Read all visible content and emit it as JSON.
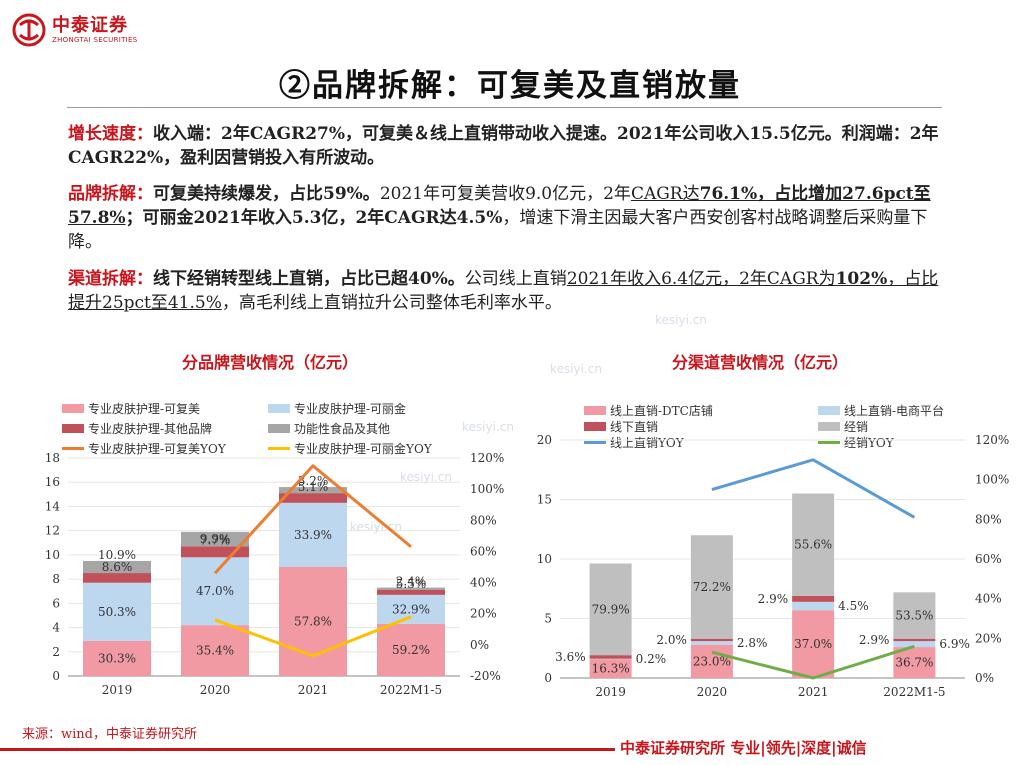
{
  "logo": {
    "cn": "中泰证券",
    "en": "ZHONGTAI SECURITIES"
  },
  "title": "②品牌拆解：可复美及直销放量",
  "paragraphs": {
    "p1_kw": "增长速度：",
    "p1_bold": "收入端：2年CAGR27%，可复美＆线上直销带动收入提速。2021年公司收入15.5亿元。利润端：2年CAGR22%，盈利因营销投入有所波动。",
    "p2_kw": "品牌拆解：",
    "p2_b1": "可复美持续爆发，占比59%。",
    "p2_t1": "2021年可复美营收9.0亿元，2年",
    "p2_u1": "CAGR达",
    "p2_ub1": "76.1%，占比增加27.6pct至57.8%",
    "p2_b2": "；可丽金2021年收入5.3亿，2年CAGR达4.5%",
    "p2_t2": "，增速下滑主因最大客户西安创客村战略调整后采购量下降。",
    "p3_kw": "渠道拆解：",
    "p3_b1": "线下经销转型线上直销，占比已超40%。",
    "p3_t1": "公司线上直销",
    "p3_u1": "2021年收入6.4亿元，2年CAGR为",
    "p3_ub1": "102%",
    "p3_u2": "，占比提升25pct至41.5%",
    "p3_t2": "，高毛利线上直销拉升公司整体毛利率水平。"
  },
  "watermarks": [
    "kesiyi.cn",
    "kesiyi.cn",
    "kesiyi.cn",
    "kesiyi.cn",
    "kesiyi.cn"
  ],
  "source": "来源：wind，中泰证券研究所",
  "footer": "中泰证券研究所 专业|领先|深度|诚信",
  "colors": {
    "brand_red": "#c8161d",
    "pink": "#f19aa4",
    "lightblue": "#bdd7ee",
    "darkred": "#c0505a",
    "gray": "#bfbfbf",
    "orange": "#ed7d31",
    "yellow": "#ffc000",
    "blue": "#5b9bd5",
    "green": "#70ad47"
  },
  "chart_data": [
    {
      "type": "bar",
      "title": "分品牌营收情况（亿元）",
      "categories": [
        "2019",
        "2020",
        "2021",
        "2022M1-5"
      ],
      "stack_order": [
        "专业皮肤护理-可复美",
        "专业皮肤护理-可丽金",
        "专业皮肤护理-其他品牌",
        "功能性食品及其他"
      ],
      "totals": [
        9.6,
        12.0,
        15.5,
        7.2
      ],
      "series": [
        {
          "name": "专业皮肤护理-可复美",
          "share_labels": [
            "30.3%",
            "35.4%",
            "57.8%",
            "59.2%"
          ],
          "values": [
            2.9,
            4.2,
            9.0,
            4.3
          ],
          "color": "#f19aa4"
        },
        {
          "name": "专业皮肤护理-可丽金",
          "share_labels": [
            "50.3%",
            "47.0%",
            "33.9%",
            "32.9%"
          ],
          "values": [
            4.8,
            5.6,
            5.3,
            2.4
          ],
          "color": "#bdd7ee"
        },
        {
          "name": "专业皮肤护理-其他品牌",
          "share_labels": [
            "8.6%",
            "7.7%",
            "5.1%",
            "5.5%"
          ],
          "values": [
            0.8,
            0.9,
            0.8,
            0.4
          ],
          "color": "#c0505a"
        },
        {
          "name": "功能性食品及其他",
          "share_labels": [
            "10.9%",
            "9.9%",
            "3.2%",
            "2.4%"
          ],
          "values": [
            1.0,
            1.2,
            0.5,
            0.2
          ],
          "color": "#a6a6a6"
        }
      ],
      "lines": [
        {
          "name": "专业皮肤护理-可复美YOY",
          "values": [
            null,
            46,
            115,
            63
          ],
          "color": "#ed7d31"
        },
        {
          "name": "专业皮肤护理-可丽金YOY",
          "values": [
            null,
            16,
            -7,
            18
          ],
          "color": "#ffc000"
        }
      ],
      "y_ticks": [
        "0",
        "2",
        "4",
        "6",
        "8",
        "10",
        "12",
        "14",
        "16",
        "18"
      ],
      "y2_ticks": [
        "-20%",
        "0%",
        "20%",
        "40%",
        "60%",
        "80%",
        "100%",
        "120%"
      ],
      "ylim": [
        0,
        18
      ],
      "y2lim": [
        -20,
        120
      ],
      "legend": "top"
    },
    {
      "type": "bar",
      "title": "分渠道营收情况（亿元）",
      "categories": [
        "2019",
        "2020",
        "2021",
        "2022M1-5"
      ],
      "stack_order": [
        "线上直销-DTC店铺",
        "线上直销-电商平台",
        "线下直销",
        "经销"
      ],
      "totals": [
        9.6,
        12.0,
        15.5,
        7.2
      ],
      "series": [
        {
          "name": "线上直销-DTC店铺",
          "share_labels": [
            "16.3%",
            "23.0%",
            "37.0%",
            "36.7%"
          ],
          "values": [
            1.6,
            2.8,
            5.7,
            2.6
          ],
          "color": "#f19aa4"
        },
        {
          "name": "线上直销-电商平台",
          "share_labels": [
            "0.2%",
            "2.8%",
            "4.5%",
            "6.9%"
          ],
          "values": [
            0.02,
            0.3,
            0.7,
            0.5
          ],
          "color": "#bdd7ee"
        },
        {
          "name": "线下直销",
          "share_labels": [
            "3.6%",
            "2.0%",
            "2.9%",
            "2.9%"
          ],
          "values": [
            0.3,
            0.2,
            0.5,
            0.2
          ],
          "color": "#c0505a"
        },
        {
          "name": "经销",
          "share_labels": [
            "79.9%",
            "72.2%",
            "55.6%",
            "53.5%"
          ],
          "values": [
            7.7,
            8.7,
            8.6,
            3.9
          ],
          "color": "#bfbfbf"
        }
      ],
      "lines": [
        {
          "name": "线上直销YOY",
          "values": [
            null,
            95,
            110,
            81
          ],
          "color": "#5b9bd5"
        },
        {
          "name": "经销YOY",
          "values": [
            null,
            13,
            0,
            16
          ],
          "color": "#70ad47"
        }
      ],
      "y_ticks": [
        "0",
        "5",
        "10",
        "15",
        "20"
      ],
      "y2_ticks": [
        "0%",
        "20%",
        "40%",
        "60%",
        "80%",
        "100%",
        "120%"
      ],
      "ylim": [
        0,
        20
      ],
      "y2lim": [
        0,
        120
      ],
      "legend": "top"
    }
  ]
}
